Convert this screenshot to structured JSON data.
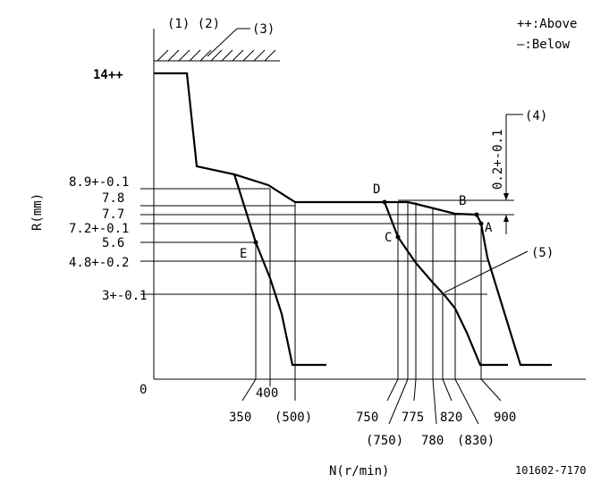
{
  "diagram": {
    "callouts": {
      "c1c2": "(1) (2)",
      "c3": "(3)",
      "c4": "(4)",
      "c5": "(5)"
    },
    "legend": {
      "above": "++:Above",
      "below": "—:Below"
    },
    "axes": {
      "y_label": "R(mm)",
      "x_label": "N(r/min)",
      "origin": "0"
    },
    "y_ticks": {
      "t14": "14++",
      "t89": "8.9+-0.1",
      "t78": "7.8",
      "t77": "7.7",
      "t72": "7.2+-0.1",
      "t56": "5.6",
      "t48": "4.8+-0.2",
      "t3": "3+-0.1"
    },
    "x_ticks": {
      "n350": "350",
      "n400": "400",
      "n500p": "(500)",
      "n750": "750",
      "n750p": "(750)",
      "n775": "775",
      "n780": "780",
      "n820": "820",
      "n830p": "(830)",
      "n900": "900"
    },
    "points": {
      "A": "A",
      "B": "B",
      "C": "C",
      "D": "D",
      "E": "E"
    },
    "dim_label": "0.2+-0.1",
    "drawing_number": "101602-7170"
  }
}
